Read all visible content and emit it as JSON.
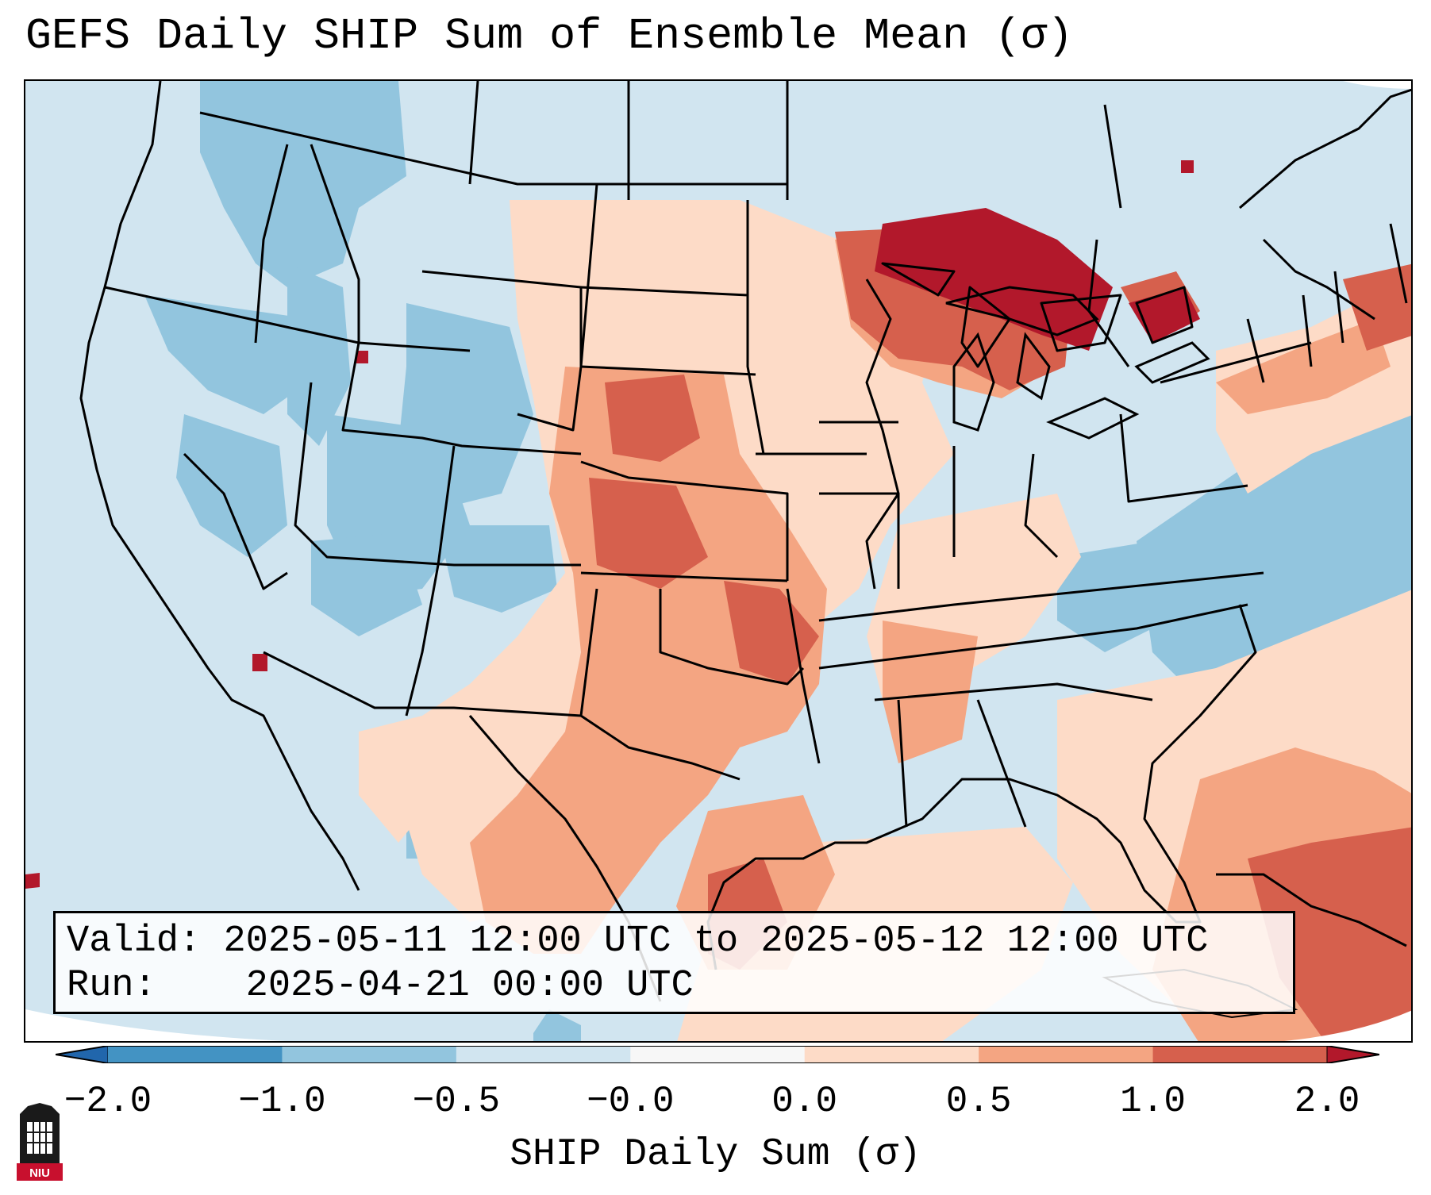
{
  "title": "GEFS Daily SHIP Sum of Ensemble Mean (σ)",
  "info": {
    "valid_label": "Valid:",
    "valid_value": "2025-05-11 12:00 UTC to 2025-05-12 12:00 UTC",
    "run_label": "Run:",
    "run_value": "2025-04-21 00:00 UTC"
  },
  "colorbar": {
    "label": "SHIP Daily Sum (σ)",
    "ticks": [
      "−2.0",
      "−1.0",
      "−0.5",
      "−0.0",
      "0.0",
      "0.5",
      "1.0",
      "2.0"
    ],
    "bins": [
      {
        "range": "< -2.0",
        "color": "#2166ac"
      },
      {
        "range": "-2.0 to -1.0",
        "color": "#4393c3"
      },
      {
        "range": "-1.0 to -0.5",
        "color": "#92c5de"
      },
      {
        "range": "-0.5 to -0.0",
        "color": "#d1e5f0"
      },
      {
        "range": "-0.0 to 0.0",
        "color": "#f7f7f7"
      },
      {
        "range": "0.0 to 0.5",
        "color": "#fddbc7"
      },
      {
        "range": "0.5 to 1.0",
        "color": "#f4a582"
      },
      {
        "range": "1.0 to 2.0",
        "color": "#d6604d"
      },
      {
        "range": "> 2.0",
        "color": "#b2182b"
      }
    ]
  },
  "map": {
    "region": "Contiguous United States",
    "features": {
      "great_lakes": "strongly positive (>2.0σ)",
      "central_plains": "positive (0.5–1.0σ)",
      "western_us": "negative (-1.0 to -0.5σ)",
      "southeast_gulf": "weak positive",
      "atlantic_offshore": "negative"
    }
  },
  "logo": {
    "text": "NIU",
    "name": "niu-logo"
  }
}
